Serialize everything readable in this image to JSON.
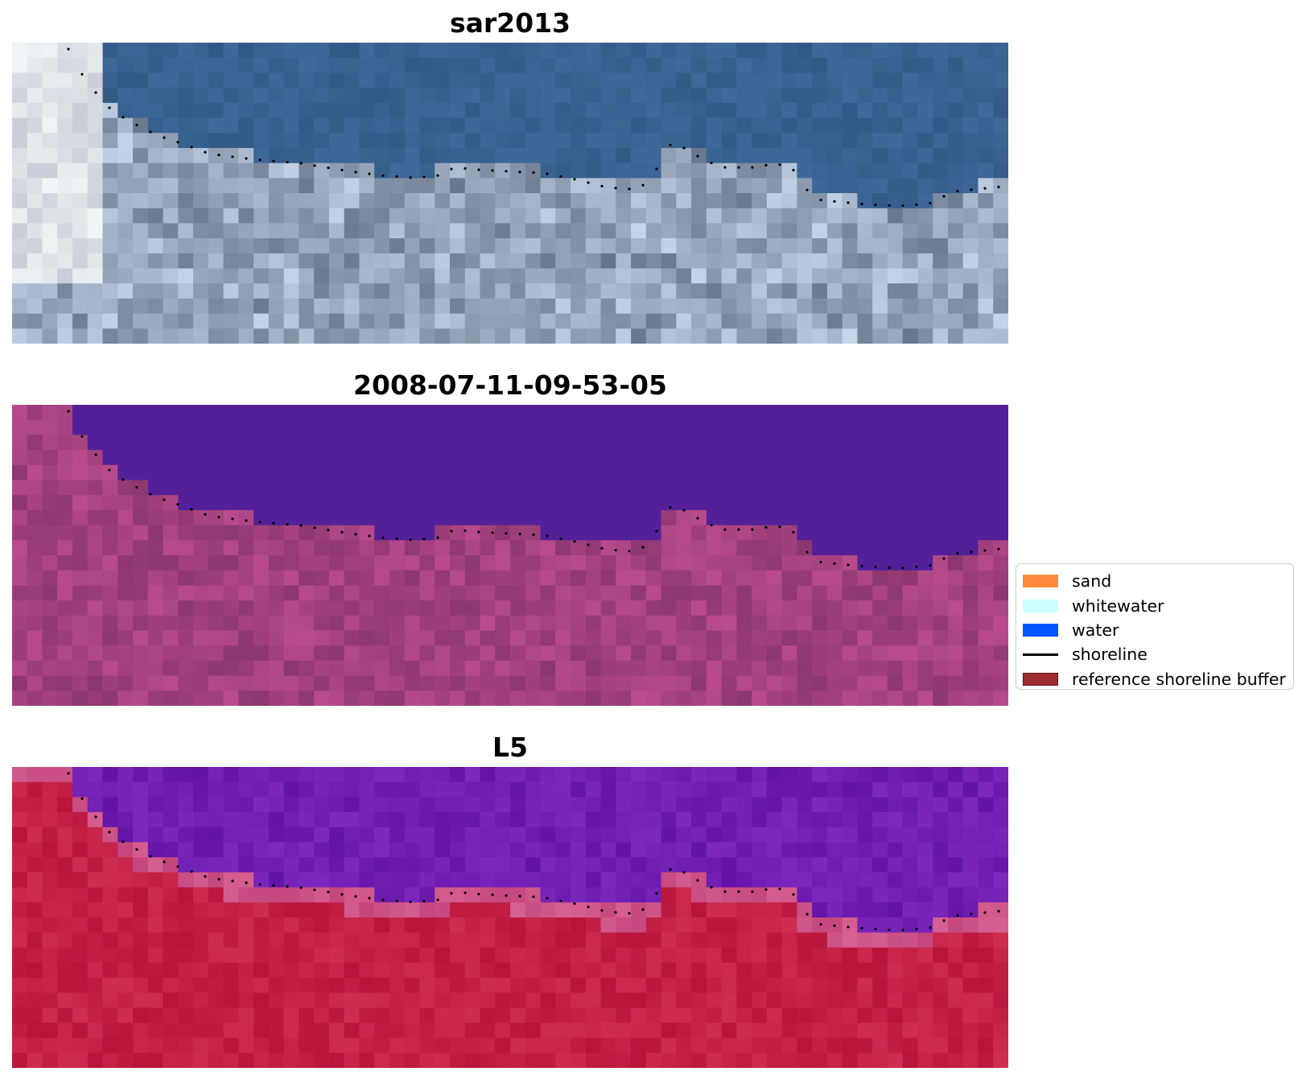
{
  "panels": [
    {
      "title": "sar2013",
      "colormap": "rgb"
    },
    {
      "title": "2008-07-11-09-53-05",
      "colormap": "classified"
    },
    {
      "title": "L5",
      "colormap": "index"
    }
  ],
  "legend": {
    "items": [
      {
        "label": "sand",
        "color": "#ff8c3c",
        "kind": "patch"
      },
      {
        "label": "whitewater",
        "color": "#ccffff",
        "kind": "patch"
      },
      {
        "label": "water",
        "color": "#0055ff",
        "kind": "patch"
      },
      {
        "label": "shoreline",
        "color": "#000000",
        "kind": "line"
      },
      {
        "label": "reference shoreline buffer",
        "color": "#9b2d30",
        "kind": "patch"
      }
    ]
  }
}
